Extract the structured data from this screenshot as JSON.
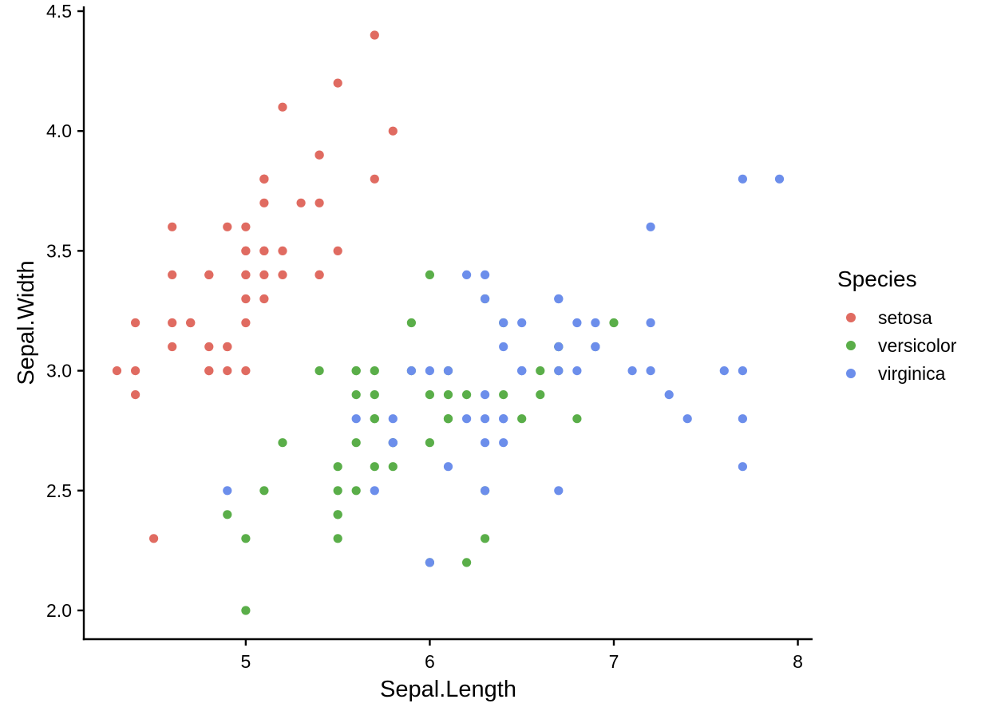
{
  "chart_data": {
    "type": "scatter",
    "title": "",
    "xlabel": "Sepal.Length",
    "ylabel": "Sepal.Width",
    "xlim": [
      4.12,
      8.08
    ],
    "ylim": [
      1.88,
      4.52
    ],
    "x_ticks": [
      5,
      6,
      7,
      8
    ],
    "x_tick_labels": [
      "5",
      "6",
      "7",
      "8"
    ],
    "y_ticks": [
      2.0,
      2.5,
      3.0,
      3.5,
      4.0,
      4.5
    ],
    "y_tick_labels": [
      "2.0",
      "2.5",
      "3.0",
      "3.5",
      "4.0",
      "4.5"
    ],
    "grid": false,
    "legend": {
      "title": "Species",
      "position": "right"
    },
    "series": [
      {
        "name": "setosa",
        "color": "#E06B61",
        "points": [
          [
            5.1,
            3.5
          ],
          [
            4.9,
            3.0
          ],
          [
            4.7,
            3.2
          ],
          [
            4.6,
            3.1
          ],
          [
            5.0,
            3.6
          ],
          [
            5.4,
            3.9
          ],
          [
            4.6,
            3.4
          ],
          [
            5.0,
            3.4
          ],
          [
            4.4,
            2.9
          ],
          [
            4.9,
            3.1
          ],
          [
            5.4,
            3.7
          ],
          [
            4.8,
            3.4
          ],
          [
            4.8,
            3.0
          ],
          [
            4.3,
            3.0
          ],
          [
            5.8,
            4.0
          ],
          [
            5.7,
            4.4
          ],
          [
            5.4,
            3.9
          ],
          [
            5.1,
            3.5
          ],
          [
            5.7,
            3.8
          ],
          [
            5.1,
            3.8
          ],
          [
            5.4,
            3.4
          ],
          [
            5.1,
            3.7
          ],
          [
            4.6,
            3.6
          ],
          [
            5.1,
            3.3
          ],
          [
            4.8,
            3.4
          ],
          [
            5.0,
            3.0
          ],
          [
            5.0,
            3.4
          ],
          [
            5.2,
            3.5
          ],
          [
            5.2,
            3.4
          ],
          [
            4.7,
            3.2
          ],
          [
            4.8,
            3.1
          ],
          [
            5.4,
            3.4
          ],
          [
            5.2,
            4.1
          ],
          [
            5.5,
            4.2
          ],
          [
            4.9,
            3.1
          ],
          [
            5.0,
            3.2
          ],
          [
            5.5,
            3.5
          ],
          [
            4.9,
            3.6
          ],
          [
            4.4,
            3.0
          ],
          [
            5.1,
            3.4
          ],
          [
            5.0,
            3.5
          ],
          [
            4.5,
            2.3
          ],
          [
            4.4,
            3.2
          ],
          [
            5.0,
            3.5
          ],
          [
            5.1,
            3.8
          ],
          [
            4.8,
            3.0
          ],
          [
            5.1,
            3.8
          ],
          [
            4.6,
            3.2
          ],
          [
            5.3,
            3.7
          ],
          [
            5.0,
            3.3
          ]
        ]
      },
      {
        "name": "versicolor",
        "color": "#5AAE49",
        "points": [
          [
            7.0,
            3.2
          ],
          [
            6.4,
            3.2
          ],
          [
            6.9,
            3.1
          ],
          [
            5.5,
            2.3
          ],
          [
            6.5,
            2.8
          ],
          [
            5.7,
            2.8
          ],
          [
            6.3,
            3.3
          ],
          [
            4.9,
            2.4
          ],
          [
            6.6,
            2.9
          ],
          [
            5.2,
            2.7
          ],
          [
            5.0,
            2.0
          ],
          [
            5.9,
            3.0
          ],
          [
            6.0,
            2.2
          ],
          [
            6.1,
            2.9
          ],
          [
            5.6,
            2.9
          ],
          [
            6.7,
            3.1
          ],
          [
            5.6,
            3.0
          ],
          [
            5.8,
            2.7
          ],
          [
            6.2,
            2.2
          ],
          [
            5.6,
            2.5
          ],
          [
            5.9,
            3.2
          ],
          [
            6.1,
            2.8
          ],
          [
            6.3,
            2.5
          ],
          [
            6.1,
            2.8
          ],
          [
            6.4,
            2.9
          ],
          [
            6.6,
            3.0
          ],
          [
            6.8,
            2.8
          ],
          [
            6.7,
            3.0
          ],
          [
            6.0,
            2.9
          ],
          [
            5.7,
            2.6
          ],
          [
            5.5,
            2.4
          ],
          [
            5.5,
            2.4
          ],
          [
            5.8,
            2.7
          ],
          [
            6.0,
            2.7
          ],
          [
            5.4,
            3.0
          ],
          [
            6.0,
            3.4
          ],
          [
            6.7,
            3.1
          ],
          [
            6.3,
            2.3
          ],
          [
            5.6,
            3.0
          ],
          [
            5.5,
            2.5
          ],
          [
            5.5,
            2.6
          ],
          [
            6.1,
            3.0
          ],
          [
            5.8,
            2.6
          ],
          [
            5.0,
            2.3
          ],
          [
            5.6,
            2.7
          ],
          [
            5.7,
            3.0
          ],
          [
            5.7,
            2.9
          ],
          [
            6.2,
            2.9
          ],
          [
            5.1,
            2.5
          ],
          [
            5.7,
            2.8
          ]
        ]
      },
      {
        "name": "virginica",
        "color": "#6C8EEB",
        "points": [
          [
            6.3,
            3.3
          ],
          [
            5.8,
            2.7
          ],
          [
            7.1,
            3.0
          ],
          [
            6.3,
            2.9
          ],
          [
            6.5,
            3.0
          ],
          [
            7.6,
            3.0
          ],
          [
            4.9,
            2.5
          ],
          [
            7.3,
            2.9
          ],
          [
            6.7,
            2.5
          ],
          [
            7.2,
            3.6
          ],
          [
            6.5,
            3.2
          ],
          [
            6.4,
            2.7
          ],
          [
            6.8,
            3.0
          ],
          [
            5.7,
            2.5
          ],
          [
            5.8,
            2.8
          ],
          [
            6.4,
            3.2
          ],
          [
            6.5,
            3.0
          ],
          [
            7.7,
            3.8
          ],
          [
            7.7,
            2.6
          ],
          [
            6.0,
            2.2
          ],
          [
            6.9,
            3.2
          ],
          [
            5.6,
            2.8
          ],
          [
            7.7,
            2.8
          ],
          [
            6.3,
            2.7
          ],
          [
            6.7,
            3.3
          ],
          [
            7.2,
            3.2
          ],
          [
            6.2,
            2.8
          ],
          [
            6.1,
            3.0
          ],
          [
            6.4,
            2.8
          ],
          [
            7.2,
            3.0
          ],
          [
            7.4,
            2.8
          ],
          [
            7.9,
            3.8
          ],
          [
            6.4,
            2.8
          ],
          [
            6.3,
            2.8
          ],
          [
            6.1,
            2.6
          ],
          [
            7.7,
            3.0
          ],
          [
            6.3,
            3.4
          ],
          [
            6.4,
            3.1
          ],
          [
            6.0,
            3.0
          ],
          [
            6.9,
            3.1
          ],
          [
            6.7,
            3.1
          ],
          [
            6.9,
            3.1
          ],
          [
            5.8,
            2.7
          ],
          [
            6.8,
            3.2
          ],
          [
            6.7,
            3.3
          ],
          [
            6.7,
            3.0
          ],
          [
            6.3,
            2.5
          ],
          [
            6.5,
            3.0
          ],
          [
            6.2,
            3.4
          ],
          [
            5.9,
            3.0
          ]
        ]
      }
    ]
  }
}
